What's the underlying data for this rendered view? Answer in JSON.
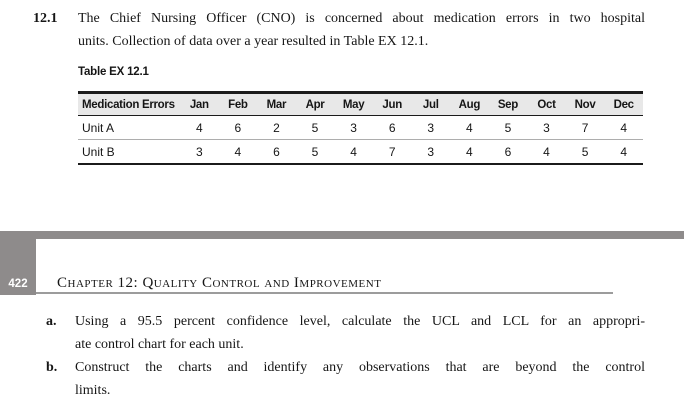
{
  "problem": {
    "number": "12.1",
    "lines": [
      "The Chief Nursing Officer (CNO) is concerned about medication errors in two hospital",
      "units. Collection of data over a year resulted in Table EX 12.1."
    ]
  },
  "table": {
    "title": "Table EX 12.1",
    "columns": [
      "Medication Errors",
      "Jan",
      "Feb",
      "Mar",
      "Apr",
      "May",
      "Jun",
      "Jul",
      "Aug",
      "Sep",
      "Oct",
      "Nov",
      "Dec"
    ],
    "rows": [
      {
        "label": "Unit A",
        "values": [
          4,
          6,
          2,
          5,
          3,
          6,
          3,
          4,
          5,
          3,
          7,
          4
        ]
      },
      {
        "label": "Unit B",
        "values": [
          3,
          4,
          6,
          5,
          4,
          7,
          3,
          4,
          6,
          4,
          5,
          4
        ]
      }
    ]
  },
  "page_header": {
    "page_number": "422",
    "chapter_title": "Chapter 12: Quality Control and Improvement"
  },
  "questions": [
    {
      "label": "a.",
      "lines": [
        "Using a 95.5 percent confidence level, calculate the UCL and LCL for an appropri-",
        "ate control chart for each unit."
      ]
    },
    {
      "label": "b.",
      "lines": [
        "Construct the charts and identify any observations that are beyond the control",
        "limits."
      ]
    }
  ],
  "colors": {
    "band_gray": "#8e8b8b",
    "table_header_bg": "#e8e8e8",
    "rule_gray": "#9c9c9c",
    "border_dark": "#1b1b1b",
    "row_divider": "#adadad",
    "text": "#161616",
    "page_number_text": "#ffffff"
  }
}
